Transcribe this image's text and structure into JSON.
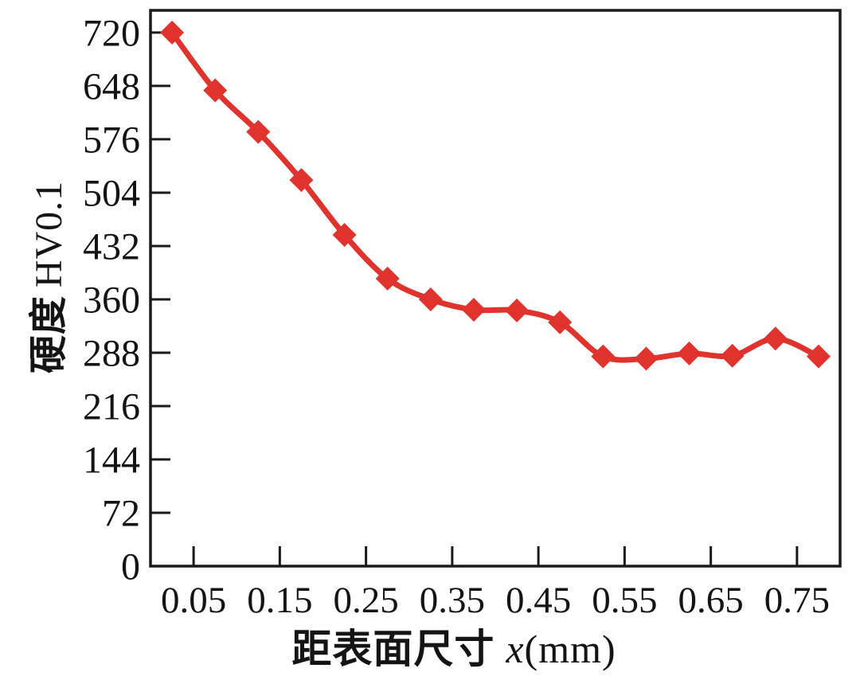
{
  "figure": {
    "background": "#ffffff"
  },
  "axis_titles": {
    "y_cjk": "硬度",
    "y_latin": "HV0.1",
    "x_cjk": "距表面尺寸",
    "x_var": "x",
    "x_unit": "(mm)"
  },
  "chart_data": {
    "type": "line",
    "title": "",
    "xlabel": "距表面尺寸 x(mm)",
    "ylabel": "硬度 HV0.1",
    "x": [
      0.025,
      0.075,
      0.125,
      0.175,
      0.225,
      0.275,
      0.325,
      0.375,
      0.425,
      0.475,
      0.525,
      0.575,
      0.625,
      0.675,
      0.725,
      0.775
    ],
    "values": [
      720,
      642,
      586,
      521,
      447,
      388,
      360,
      346,
      345,
      329,
      283,
      280,
      287,
      284,
      307,
      283
    ],
    "xlim": [
      0,
      0.8
    ],
    "ylim": [
      0,
      750
    ],
    "xticks": [
      0.05,
      0.15,
      0.25,
      0.35,
      0.45,
      0.55,
      0.65,
      0.75
    ],
    "yticks": [
      0,
      72,
      144,
      216,
      288,
      360,
      432,
      504,
      576,
      648,
      720
    ],
    "x_tick_decimals": 2,
    "grid": false,
    "legend": "none",
    "marker": "diamond",
    "line_color": "#e0332d",
    "axis_color": "#1a1a1a",
    "background": "#ffffff"
  }
}
